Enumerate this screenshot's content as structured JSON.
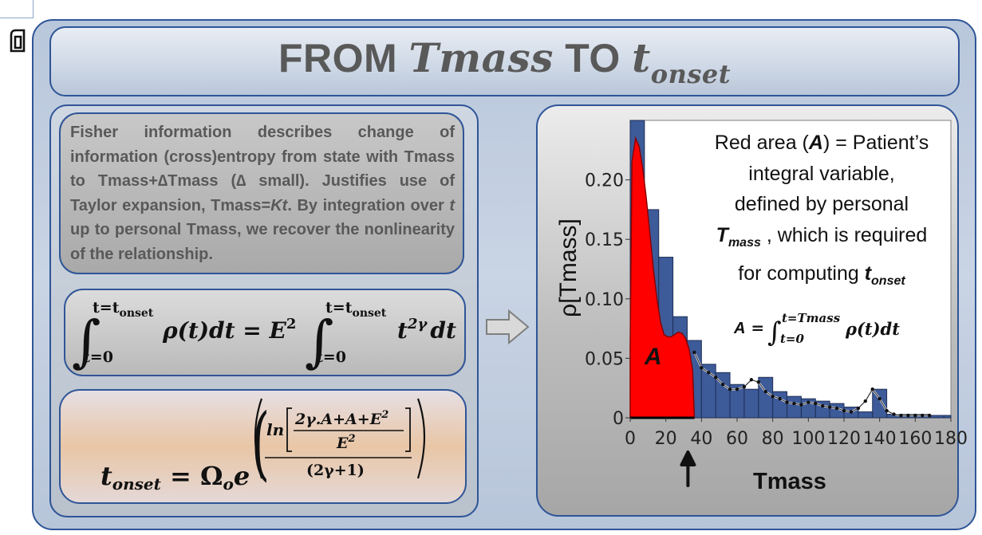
{
  "title": {
    "prefix": "FROM ",
    "math_from": "Tmass",
    "middle": " TO ",
    "math_to": "t",
    "math_to_sub": "onset"
  },
  "description": {
    "part1": "Fisher information describes change of information (cross)entropy from state with Tmass to Tmass+∆Tmass (∆ small). Justifies use of Taylor expansion, Tmass=",
    "Kt": "Kt",
    "part2": ". By integration over ",
    "t": "t",
    "part3": " up to personal Tmass, we recover the nonlinearity of the relationship."
  },
  "equation1": {
    "upper_limit": "t=t",
    "upper_limit_sub": "onset",
    "lower_limit": "t=0",
    "lhs_integrand": "ρ(t)dt = E",
    "exp2": "2",
    "rhs_integrand_base": "t",
    "rhs_integrand_exp": "2γ",
    "rhs_dt": "dt"
  },
  "equation2": {
    "lhs": "t",
    "lhs_sub": "onset",
    "eq": " = Ω",
    "omega_sub": "o",
    "e": "e",
    "ln": "ln",
    "numerator": "2γ.A+A+E",
    "numerator_exp": "2",
    "denominator": "E",
    "denominator_exp": "2",
    "outer_denominator": "(2γ+1)"
  },
  "explanation": {
    "line1_pre": "Red area (",
    "line1_A": "A",
    "line1_post": ") = Patient’s",
    "line2": "integral variable,",
    "line3": "defined by personal",
    "line4_T": "T",
    "line4_sub": "mass",
    "line4_post": " , which is required",
    "line5_pre": "for computing ",
    "line5_t": "t",
    "line5_sub": "onset"
  },
  "area_formula": {
    "lhs": "A",
    "eq": " =",
    "upper": "t=Tmass",
    "lower": "t=0",
    "integrand": "ρ(t)dt"
  },
  "colors": {
    "frame_blue": "#2f5597",
    "bar_fill": "#3d5a99",
    "red_area": "#ff0000",
    "title_gray": "#595959"
  },
  "chart_data": {
    "type": "bar",
    "xlabel": "Tmass",
    "ylabel": "ρ[Tmass]",
    "xlim": [
      0,
      180
    ],
    "ylim": [
      0,
      0.25
    ],
    "xticks": [
      0,
      20,
      40,
      60,
      80,
      100,
      120,
      140,
      160,
      180
    ],
    "yticks": [
      0,
      0.05,
      0.1,
      0.15,
      0.2
    ],
    "ytick_labels": [
      "0",
      "0.05",
      "0.10",
      "0.15",
      "0.20"
    ],
    "red_area_label": "A",
    "marker": "arrow at Tmass ≈ 36",
    "bin_width": 8,
    "bar_centers": [
      4,
      12,
      20,
      28,
      36,
      44,
      52,
      60,
      68,
      76,
      84,
      92,
      100,
      108,
      116,
      124,
      132,
      140,
      148,
      156,
      164,
      172,
      180
    ],
    "bar_values": [
      0.25,
      0.175,
      0.135,
      0.085,
      0.065,
      0.045,
      0.038,
      0.028,
      0.024,
      0.034,
      0.022,
      0.018,
      0.016,
      0.014,
      0.012,
      0.009,
      0.005,
      0.024,
      0.003,
      0.003,
      0.003,
      0.002,
      0.002
    ],
    "red_curve": {
      "x": [
        0,
        1,
        3,
        5,
        7,
        9,
        11,
        13,
        15,
        17,
        19,
        21,
        23,
        25,
        27,
        29,
        31,
        33,
        35,
        36
      ],
      "y": [
        0.06,
        0.215,
        0.235,
        0.228,
        0.21,
        0.185,
        0.155,
        0.125,
        0.1,
        0.08,
        0.07,
        0.068,
        0.068,
        0.07,
        0.072,
        0.071,
        0.067,
        0.058,
        0.04,
        0.0
      ]
    },
    "fit_line": {
      "x": [
        36,
        40,
        44,
        48,
        52,
        56,
        60,
        64,
        68,
        72,
        76,
        80,
        84,
        88,
        92,
        96,
        100,
        104,
        108,
        112,
        116,
        120,
        124,
        128,
        132,
        136,
        140,
        144,
        148,
        152,
        156,
        160,
        164,
        168
      ],
      "y": [
        0.055,
        0.042,
        0.038,
        0.034,
        0.028,
        0.024,
        0.024,
        0.026,
        0.032,
        0.03,
        0.022,
        0.018,
        0.016,
        0.013,
        0.012,
        0.011,
        0.013,
        0.012,
        0.01,
        0.009,
        0.008,
        0.006,
        0.005,
        0.008,
        0.014,
        0.024,
        0.016,
        0.006,
        0.003,
        0.002,
        0.002,
        0.002,
        0.002,
        0.002
      ]
    }
  }
}
